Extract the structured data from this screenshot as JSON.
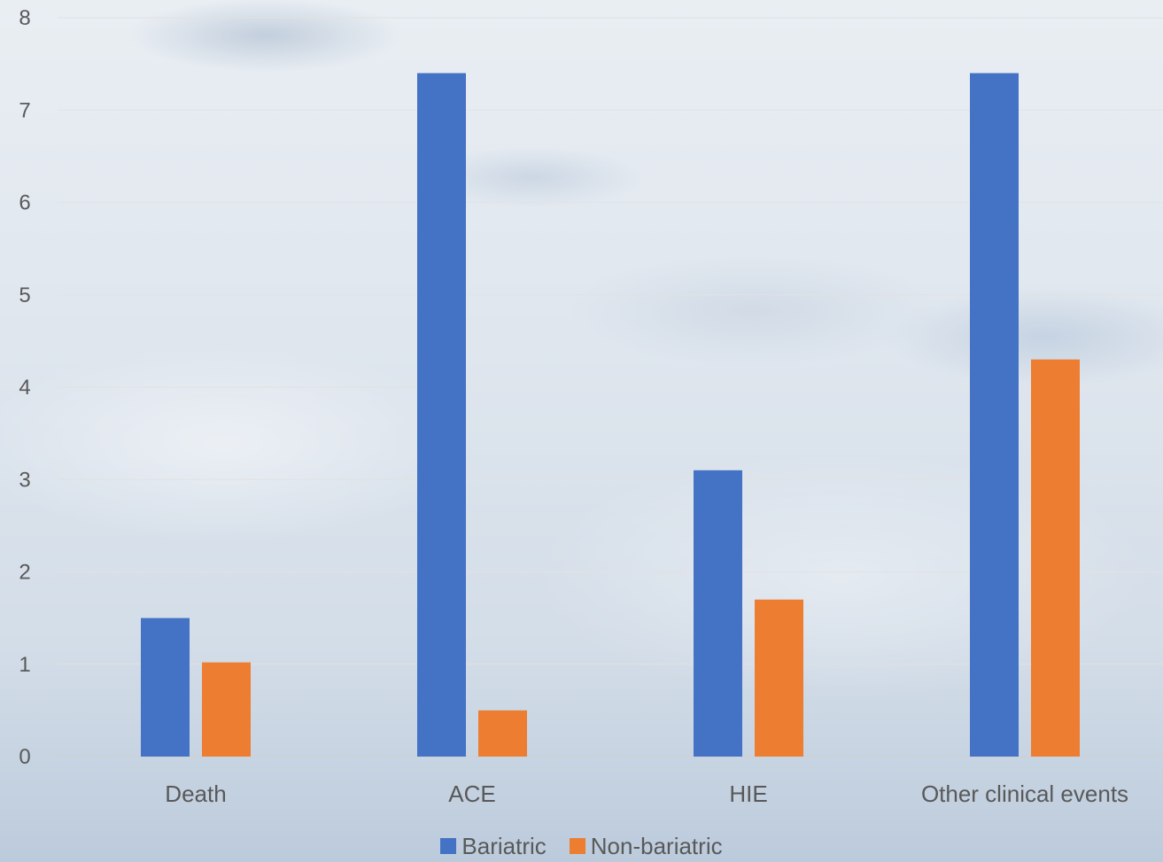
{
  "chart_data": {
    "type": "bar",
    "categories": [
      "Death",
      "ACE",
      "HIE",
      "Other clinical events"
    ],
    "series": [
      {
        "name": "Bariatric",
        "values": [
          1.5,
          7.4,
          3.1,
          7.4
        ],
        "color": "#4472c4"
      },
      {
        "name": "Non-bariatric",
        "values": [
          1.02,
          0.5,
          1.7,
          4.3
        ],
        "color": "#ed7d31"
      }
    ],
    "yticks": [
      "0",
      "1",
      "2",
      "3",
      "4",
      "5",
      "6",
      "7",
      "8"
    ],
    "ylim": [
      0,
      8
    ],
    "grid": true,
    "legend_position": "bottom"
  }
}
